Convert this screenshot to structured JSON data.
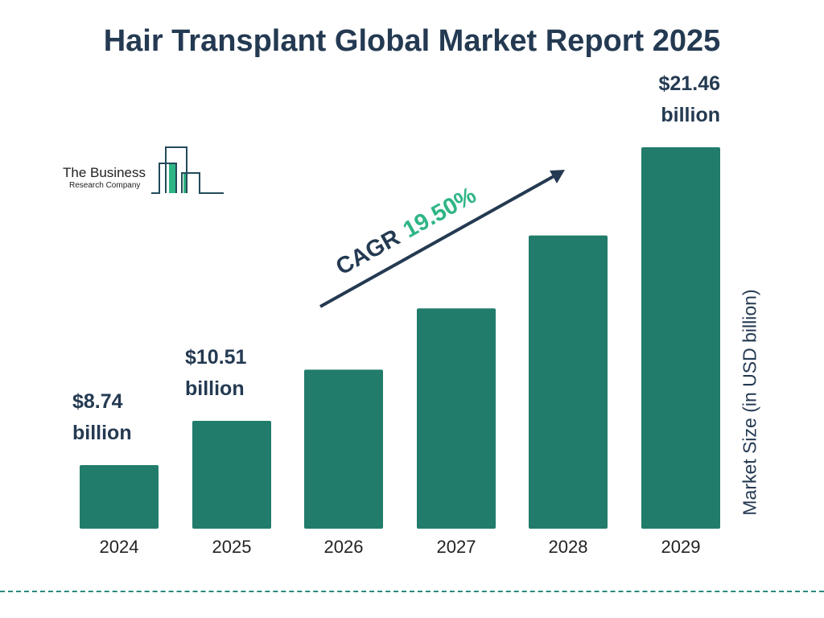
{
  "title": "Hair Transplant Global Market Report 2025",
  "logo": {
    "line1": "The Business",
    "line2": "Research Company"
  },
  "cagr": {
    "label": "CAGR",
    "value": "19.50%"
  },
  "colors": {
    "bar": "#217c6b",
    "text": "#243a52",
    "accent": "#2fb585"
  },
  "chart_data": {
    "type": "bar",
    "title": "Hair Transplant Global Market Report 2025",
    "categories": [
      "2024",
      "2025",
      "2026",
      "2027",
      "2028",
      "2029"
    ],
    "values": [
      8.74,
      10.51,
      12.56,
      15.01,
      17.93,
      21.46
    ],
    "data_labels": [
      {
        "value": "$8.74",
        "unit": "billion"
      },
      {
        "value": "$10.51",
        "unit": "billion"
      },
      null,
      null,
      null,
      {
        "value": "$21.46",
        "unit": "billion"
      }
    ],
    "xlabel": "",
    "ylabel": "Market Size (in USD billion)",
    "grid": false,
    "legend": "none"
  }
}
